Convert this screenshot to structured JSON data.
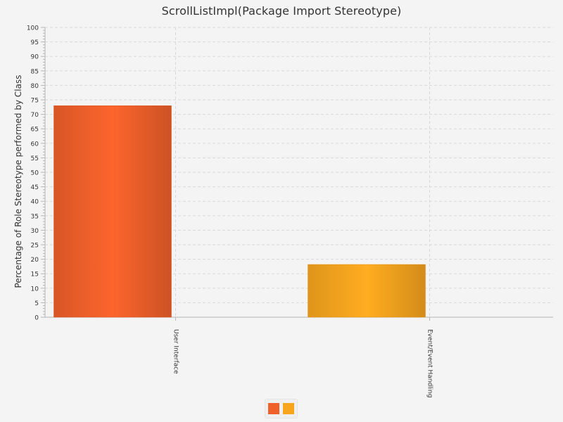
{
  "chart_data": {
    "type": "bar",
    "title": "ScrollListImpl(Package Import Stereotype)",
    "xlabel": "",
    "ylabel": "Percentage of Role Stereotype performed by Class",
    "categories": [
      "User Interface",
      "Event/Event Handling"
    ],
    "values": [
      73,
      18.2
    ],
    "colors": [
      "#f0602a",
      "#f8a51e"
    ],
    "ylim": [
      0,
      100
    ],
    "yticks": [
      0,
      5,
      10,
      15,
      20,
      25,
      30,
      35,
      40,
      45,
      50,
      55,
      60,
      65,
      70,
      75,
      80,
      85,
      90,
      95,
      100
    ],
    "grid": true,
    "legend": {
      "placement": "bottom-center",
      "entries": [
        {
          "color": "#f0602a"
        },
        {
          "color": "#f8a51e"
        }
      ]
    }
  }
}
